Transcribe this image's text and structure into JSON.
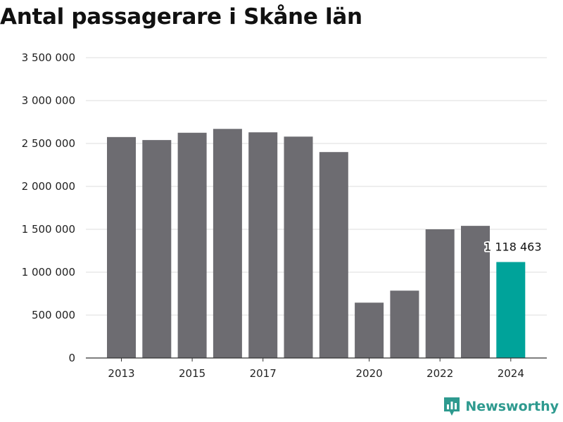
{
  "title": "Antal passagerare i Skåne län",
  "brand": {
    "name": "Newsworthy",
    "logo_icon": "newsworthy-logo-icon"
  },
  "colors": {
    "bar": "#6d6c71",
    "highlight": "#00a39a",
    "grid": "#dddddd",
    "axis": "#333333"
  },
  "chart_data": {
    "type": "bar",
    "title": "Antal passagerare i Skåne län",
    "xlabel": "",
    "ylabel": "",
    "categories": [
      "2013",
      "2014",
      "2015",
      "2016",
      "2017",
      "2018",
      "2019",
      "2020",
      "2021",
      "2022",
      "2023",
      "2024"
    ],
    "values": [
      2575000,
      2540000,
      2625000,
      2670000,
      2630000,
      2580000,
      2400000,
      645000,
      785000,
      1500000,
      1540000,
      1118463
    ],
    "highlight_index": 11,
    "data_label": {
      "index": 11,
      "text": "1 118 463"
    },
    "x_tick_labels": [
      "2013",
      "",
      "2015",
      "",
      "2017",
      "",
      "",
      "2020",
      "",
      "2022",
      "",
      "2024"
    ],
    "ylim": [
      0,
      3500000
    ],
    "y_ticks": [
      0,
      500000,
      1000000,
      1500000,
      2000000,
      2500000,
      3000000,
      3500000
    ],
    "y_tick_labels": [
      "0",
      "500 000",
      "1 000 000",
      "1 500 000",
      "2 000 000",
      "2 500 000",
      "3 000 000",
      "3 500 000"
    ],
    "grid": true,
    "legend": "none"
  }
}
